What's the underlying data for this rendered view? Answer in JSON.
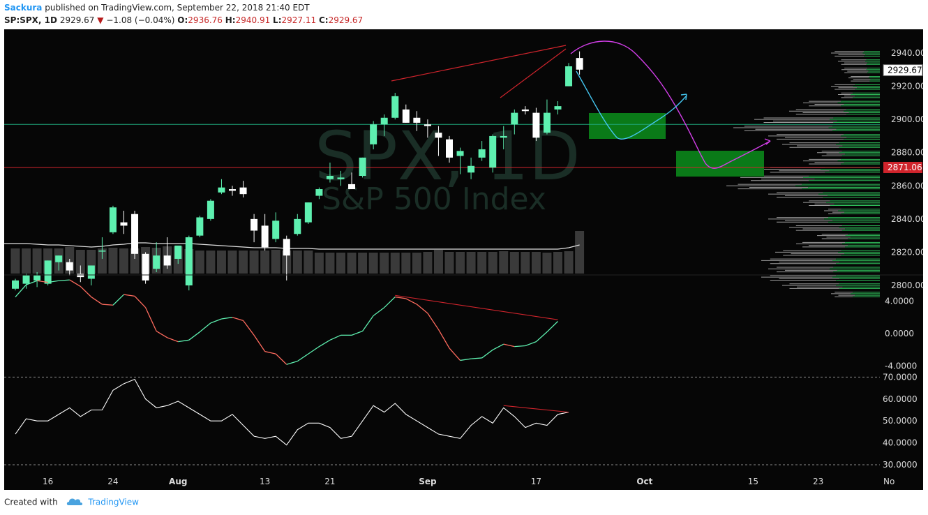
{
  "header": {
    "author": "Sackura",
    "published_text": "published on TradingView.com, September 22, 2018 21:40 EDT",
    "symbol": "SP:SPX, 1D",
    "last": "2929.67",
    "change": "−1.08 (−0.04%)",
    "o_label": "O:",
    "o_value": "2936.76",
    "h_label": "H:",
    "h_value": "2940.91",
    "l_label": "L:",
    "l_value": "2927.11",
    "c_label": "C:",
    "c_value": "2929.67"
  },
  "watermark": {
    "symbol": "SPX, 1D",
    "name": "S&P 500 Index"
  },
  "footer": {
    "created_with": "Created with",
    "brand": "TradingView"
  },
  "colors": {
    "background": "#060606",
    "up": "#5ef0b0",
    "down": "#ffffff",
    "resistance_line": "#d0242c",
    "support_line": "#1fa67a",
    "projection_magenta": "#d23ee8",
    "projection_cyan": "#44c6f0",
    "zone_green": "#0a7a18",
    "volume_bar": "#3a3a3a",
    "macd_up": "#5ef0b0",
    "macd_down": "#ff6b5e",
    "rsi_line": "#ffffff"
  },
  "chart_data": {
    "type": "candlestick",
    "symbol": "SP:SPX",
    "interval": "1D",
    "y_axis_ticks": [
      "2940.00",
      "2920.00",
      "2900.00",
      "2880.00",
      "2860.00",
      "2840.00",
      "2820.00",
      "2800.00"
    ],
    "ylim": [
      2793,
      2948
    ],
    "price_labels": [
      {
        "value": 2929.67,
        "text": "2929.67",
        "style": "last"
      },
      {
        "value": 2871.06,
        "text": "2871.06",
        "style": "line"
      }
    ],
    "horizontal_lines": [
      {
        "value": 2871.06,
        "color": "red"
      },
      {
        "value": 2897,
        "color": "green"
      }
    ],
    "x_ticks": [
      {
        "label": "16",
        "index": 3
      },
      {
        "label": "24",
        "index": 9
      },
      {
        "label": "Aug",
        "index": 15
      },
      {
        "label": "13",
        "index": 23
      },
      {
        "label": "21",
        "index": 29
      },
      {
        "label": "Sep",
        "index": 38
      },
      {
        "label": "17",
        "index": 48
      },
      {
        "label": "Oct",
        "index": 58
      },
      {
        "label": "15",
        "index": 68
      },
      {
        "label": "23",
        "index": 74
      },
      {
        "label": "No",
        "index": 80
      }
    ],
    "candles": [
      {
        "o": 2798,
        "h": 2804,
        "l": 2797,
        "c": 2803
      },
      {
        "o": 2801,
        "h": 2807,
        "l": 2798,
        "c": 2806
      },
      {
        "o": 2803,
        "h": 2808,
        "l": 2799,
        "c": 2806
      },
      {
        "o": 2801,
        "h": 2815,
        "l": 2800,
        "c": 2815
      },
      {
        "o": 2814,
        "h": 2818,
        "l": 2809,
        "c": 2818
      },
      {
        "o": 2814,
        "h": 2816,
        "l": 2806,
        "c": 2809
      },
      {
        "o": 2807,
        "h": 2812,
        "l": 2802,
        "c": 2805
      },
      {
        "o": 2804,
        "h": 2812,
        "l": 2800,
        "c": 2812
      },
      {
        "o": 2821,
        "h": 2829,
        "l": 2816,
        "c": 2821
      },
      {
        "o": 2832,
        "h": 2848,
        "l": 2831,
        "c": 2847
      },
      {
        "o": 2838,
        "h": 2845,
        "l": 2831,
        "c": 2836
      },
      {
        "o": 2843,
        "h": 2845,
        "l": 2816,
        "c": 2819
      },
      {
        "o": 2819,
        "h": 2820,
        "l": 2801,
        "c": 2803
      },
      {
        "o": 2810,
        "h": 2826,
        "l": 2808,
        "c": 2818
      },
      {
        "o": 2818,
        "h": 2829,
        "l": 2810,
        "c": 2812
      },
      {
        "o": 2816,
        "h": 2823,
        "l": 2813,
        "c": 2824
      },
      {
        "o": 2800,
        "h": 2830,
        "l": 2797,
        "c": 2829
      },
      {
        "o": 2830,
        "h": 2842,
        "l": 2829,
        "c": 2841
      },
      {
        "o": 2840,
        "h": 2852,
        "l": 2839,
        "c": 2851
      },
      {
        "o": 2856,
        "h": 2864,
        "l": 2855,
        "c": 2859
      },
      {
        "o": 2858,
        "h": 2860,
        "l": 2854,
        "c": 2857
      },
      {
        "o": 2859,
        "h": 2863,
        "l": 2853,
        "c": 2855
      },
      {
        "o": 2840,
        "h": 2843,
        "l": 2826,
        "c": 2833
      },
      {
        "o": 2836,
        "h": 2843,
        "l": 2821,
        "c": 2823
      },
      {
        "o": 2828,
        "h": 2844,
        "l": 2826,
        "c": 2839
      },
      {
        "o": 2828,
        "h": 2830,
        "l": 2803,
        "c": 2818
      },
      {
        "o": 2831,
        "h": 2843,
        "l": 2830,
        "c": 2840
      },
      {
        "o": 2838,
        "h": 2850,
        "l": 2837,
        "c": 2850
      },
      {
        "o": 2854,
        "h": 2859,
        "l": 2852,
        "c": 2858
      },
      {
        "o": 2864,
        "h": 2874,
        "l": 2862,
        "c": 2866
      },
      {
        "o": 2864,
        "h": 2869,
        "l": 2860,
        "c": 2865
      },
      {
        "o": 2861,
        "h": 2868,
        "l": 2858,
        "c": 2858
      },
      {
        "o": 2866,
        "h": 2877,
        "l": 2865,
        "c": 2877
      },
      {
        "o": 2885,
        "h": 2899,
        "l": 2882,
        "c": 2897
      },
      {
        "o": 2897,
        "h": 2903,
        "l": 2890,
        "c": 2901
      },
      {
        "o": 2901,
        "h": 2916,
        "l": 2900,
        "c": 2914
      },
      {
        "o": 2906,
        "h": 2909,
        "l": 2898,
        "c": 2898
      },
      {
        "o": 2901,
        "h": 2905,
        "l": 2893,
        "c": 2898
      },
      {
        "o": 2897,
        "h": 2900,
        "l": 2889,
        "c": 2896
      },
      {
        "o": 2892,
        "h": 2896,
        "l": 2878,
        "c": 2889
      },
      {
        "o": 2888,
        "h": 2890,
        "l": 2874,
        "c": 2877
      },
      {
        "o": 2878,
        "h": 2883,
        "l": 2867,
        "c": 2881
      },
      {
        "o": 2868,
        "h": 2877,
        "l": 2864,
        "c": 2872
      },
      {
        "o": 2877,
        "h": 2887,
        "l": 2875,
        "c": 2882
      },
      {
        "o": 2871,
        "h": 2891,
        "l": 2868,
        "c": 2890
      },
      {
        "o": 2889,
        "h": 2896,
        "l": 2882,
        "c": 2890
      },
      {
        "o": 2897,
        "h": 2906,
        "l": 2891,
        "c": 2904
      },
      {
        "o": 2906,
        "h": 2908,
        "l": 2903,
        "c": 2905
      },
      {
        "o": 2904,
        "h": 2907,
        "l": 2887,
        "c": 2889
      },
      {
        "o": 2892,
        "h": 2912,
        "l": 2891,
        "c": 2904
      },
      {
        "o": 2906,
        "h": 2911,
        "l": 2903,
        "c": 2908
      },
      {
        "o": 2920,
        "h": 2934,
        "l": 2920,
        "c": 2932
      },
      {
        "o": 2937,
        "h": 2941,
        "l": 2927,
        "c": 2930
      }
    ],
    "volume": {
      "values": [
        36,
        36,
        36,
        36,
        36,
        38,
        34,
        34,
        36,
        37,
        36,
        36,
        38,
        37,
        39,
        39,
        35,
        33,
        33,
        33,
        33,
        33,
        33,
        33,
        34,
        33,
        33,
        33,
        30,
        30,
        30,
        30,
        30,
        30,
        30,
        30,
        30,
        30,
        31,
        34,
        31,
        31,
        31,
        31,
        31,
        32,
        31,
        31,
        31,
        30,
        31,
        32,
        61
      ],
      "avg": [
        43,
        43,
        42,
        41,
        41,
        40,
        39,
        38,
        39,
        41,
        42,
        44,
        44,
        43,
        43,
        43,
        43,
        42,
        41,
        40,
        39,
        38,
        37,
        37,
        37,
        36,
        36,
        36,
        35,
        35,
        35,
        35,
        35,
        35,
        35,
        35,
        35,
        35,
        35,
        35,
        35,
        35,
        35,
        35,
        35,
        35,
        35,
        35,
        35,
        35,
        35,
        37,
        41
      ]
    },
    "volume_profile": [
      {
        "price": 2940,
        "len": 70,
        "ratio": 0.35
      },
      {
        "price": 2935,
        "len": 60,
        "ratio": 0.35
      },
      {
        "price": 2930,
        "len": 55,
        "ratio": 0.35
      },
      {
        "price": 2925,
        "len": 45,
        "ratio": 0.35
      },
      {
        "price": 2920,
        "len": 70,
        "ratio": 0.55
      },
      {
        "price": 2915,
        "len": 60,
        "ratio": 0.7
      },
      {
        "price": 2910,
        "len": 110,
        "ratio": 0.55
      },
      {
        "price": 2905,
        "len": 130,
        "ratio": 0.4
      },
      {
        "price": 2900,
        "len": 180,
        "ratio": 0.4
      },
      {
        "price": 2895,
        "len": 210,
        "ratio": 0.35
      },
      {
        "price": 2890,
        "len": 160,
        "ratio": 0.35
      },
      {
        "price": 2885,
        "len": 140,
        "ratio": 0.45
      },
      {
        "price": 2880,
        "len": 90,
        "ratio": 0.65
      },
      {
        "price": 2875,
        "len": 110,
        "ratio": 0.55
      },
      {
        "price": 2870,
        "len": 170,
        "ratio": 0.5
      },
      {
        "price": 2865,
        "len": 200,
        "ratio": 0.55
      },
      {
        "price": 2860,
        "len": 220,
        "ratio": 0.55
      },
      {
        "price": 2855,
        "len": 160,
        "ratio": 0.55
      },
      {
        "price": 2850,
        "len": 110,
        "ratio": 0.7
      },
      {
        "price": 2845,
        "len": 80,
        "ratio": 0.75
      },
      {
        "price": 2840,
        "len": 160,
        "ratio": 0.5
      },
      {
        "price": 2835,
        "len": 130,
        "ratio": 0.45
      },
      {
        "price": 2830,
        "len": 90,
        "ratio": 0.55
      },
      {
        "price": 2825,
        "len": 120,
        "ratio": 0.45
      },
      {
        "price": 2820,
        "len": 150,
        "ratio": 0.4
      },
      {
        "price": 2815,
        "len": 170,
        "ratio": 0.4
      },
      {
        "price": 2810,
        "len": 160,
        "ratio": 0.45
      },
      {
        "price": 2805,
        "len": 170,
        "ratio": 0.4
      },
      {
        "price": 2800,
        "len": 140,
        "ratio": 0.45
      },
      {
        "price": 2795,
        "len": 70,
        "ratio": 0.6
      }
    ],
    "macd": {
      "y_axis_ticks": [
        "4.0000",
        "0.0000",
        "-4.0000"
      ],
      "ylim": [
        -5.2,
        7
      ],
      "values": [
        4.5,
        6.0,
        6.5,
        6.3,
        6.5,
        6.6,
        5.8,
        4.5,
        3.6,
        3.5,
        4.8,
        4.6,
        3.2,
        0.3,
        -0.5,
        -1.0,
        -0.8,
        0.2,
        1.3,
        1.8,
        2.0,
        1.6,
        -0.2,
        -2.2,
        -2.5,
        -3.8,
        -3.4,
        -2.5,
        -1.6,
        -0.8,
        -0.2,
        -0.2,
        0.3,
        2.2,
        3.2,
        4.5,
        4.3,
        3.6,
        2.5,
        0.5,
        -1.8,
        -3.3,
        -3.1,
        -3.0,
        -2.0,
        -1.3,
        -1.6,
        -1.5,
        -1.0,
        0.2,
        1.5
      ],
      "divergence": {
        "from_index": 35,
        "from": 4.7,
        "to_index": 50,
        "to": 1.7
      }
    },
    "rsi": {
      "y_axis_ticks": [
        "70.0000",
        "60.0000",
        "50.0000",
        "40.0000",
        "30.0000"
      ],
      "ylim": [
        28,
        71
      ],
      "levels": [
        70,
        30
      ],
      "values": [
        44,
        51,
        50,
        50,
        53,
        56,
        52,
        55,
        55,
        64,
        67,
        69,
        60,
        56,
        57,
        59,
        56,
        53,
        50,
        50,
        53,
        48,
        43,
        42,
        43,
        39,
        46,
        49,
        49,
        47,
        42,
        43,
        50,
        57,
        54,
        58,
        53,
        50,
        47,
        44,
        43,
        42,
        48,
        52,
        49,
        56,
        52,
        47,
        49,
        48,
        53,
        54
      ],
      "divergence": {
        "from_index": 45,
        "from": 57,
        "to_index": 51,
        "to": 54
      }
    }
  }
}
